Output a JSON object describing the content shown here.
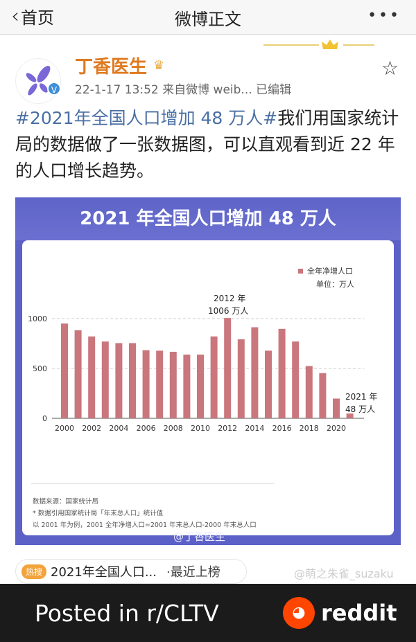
{
  "nav": {
    "back_label": "首页",
    "title": "微博正文",
    "more_icon": "more-dots-icon"
  },
  "post": {
    "author": "丁香医生",
    "meta": "22-1-17 13:52  来自微博 weib...  已编辑",
    "hashtag": "#2021年全国人口增加 48 万人#",
    "text": "我们用国家统计局的数据做了一张数据图，可以直观看到近 22 年的人口增长趋势。"
  },
  "card": {
    "title": "2021 年全国人口增加 48 万人",
    "legend": "全年净增人口",
    "unit": "单位：万人",
    "annotation_2012_year": "2012 年",
    "annotation_2012_value": "1006 万人",
    "annotation_2021_year": "2021 年",
    "annotation_2021_value": "48 万人",
    "notes": [
      "数据来源：国家统计局",
      "* 数据引用国家统计局「年末总人口」统计值",
      "以 2001 年为例，2001 全年净增人口=2001 年末总人口-2000 年末总人口"
    ],
    "watermark": "@丁香医生"
  },
  "hot_search": {
    "badge": "热搜",
    "text": "2021年全国人口...",
    "status": "·最近上榜"
  },
  "watermark": "@萌之朱雀_suzaku",
  "footer": {
    "posted": "Posted in r/CLTV",
    "brand": "reddit"
  },
  "colors": {
    "bar": "#c9767c",
    "card": "#5b61c6",
    "author": "#e07a1f",
    "hashtag": "#4a6fa5"
  },
  "chart_data": {
    "type": "bar",
    "title": "2021 年全国人口增加 48 万人",
    "legend": [
      "全年净增人口"
    ],
    "legend_placement": "top-right",
    "ylabel": "单位：万人",
    "ylim": [
      0,
      1000
    ],
    "yticks": [
      0,
      500,
      1000
    ],
    "xticks": [
      "2000",
      "2002",
      "2004",
      "2006",
      "2008",
      "2010",
      "2012",
      "2014",
      "2016",
      "2018",
      "2020"
    ],
    "grid": "horizontal-dashed",
    "categories": [
      "2000",
      "2001",
      "2002",
      "2003",
      "2004",
      "2005",
      "2006",
      "2007",
      "2008",
      "2009",
      "2010",
      "2011",
      "2012",
      "2013",
      "2014",
      "2015",
      "2016",
      "2017",
      "2018",
      "2019",
      "2020",
      "2021"
    ],
    "values": [
      950,
      883,
      821,
      770,
      754,
      754,
      683,
      678,
      667,
      639,
      639,
      821,
      1006,
      793,
      913,
      678,
      897,
      770,
      524,
      453,
      198,
      48
    ]
  }
}
